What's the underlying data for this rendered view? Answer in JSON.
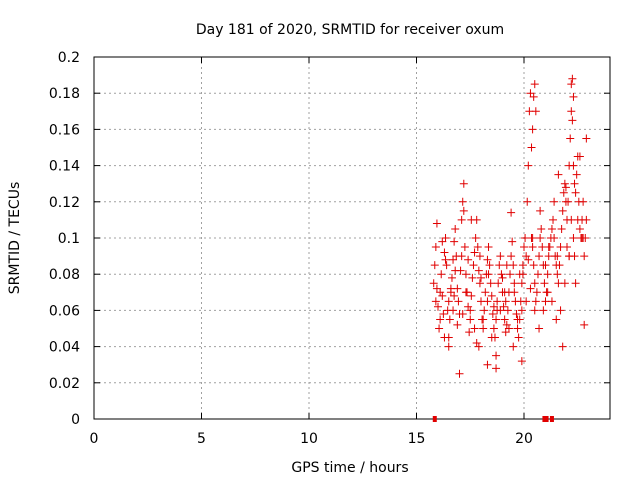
{
  "chart_data": {
    "type": "scatter",
    "title": "Day 181 of 2020, SRMTID for receiver oxum",
    "xlabel": "GPS time / hours",
    "ylabel": "SRMTID / TECUs",
    "xlim": [
      0,
      24
    ],
    "ylim": [
      0,
      0.2
    ],
    "xticks": [
      0,
      5,
      10,
      15,
      20
    ],
    "yticks": [
      0,
      0.02,
      0.04,
      0.06,
      0.08,
      0.1,
      0.12,
      0.14,
      0.16,
      0.18,
      0.2
    ],
    "grid": true,
    "marker": "plus",
    "color": "#e00000",
    "series": [
      {
        "x": [
          15.8,
          15.85,
          15.9,
          15.95,
          16.0,
          16.05,
          16.1,
          16.15,
          16.2,
          16.25,
          16.3,
          16.35,
          16.4,
          16.45,
          16.5,
          16.55,
          16.6,
          16.65,
          16.7,
          16.75,
          16.8,
          16.85,
          16.9,
          16.95,
          17.0,
          17.05,
          17.1,
          17.15,
          17.2,
          17.25,
          17.3,
          17.35,
          17.4,
          17.45,
          17.5,
          17.55,
          17.6,
          17.65,
          17.7,
          17.75,
          17.8,
          17.85,
          17.9,
          17.95,
          18.0,
          18.05,
          18.1,
          18.15,
          18.2,
          18.25,
          18.3,
          18.35,
          18.4,
          18.45,
          18.5,
          18.55,
          18.6,
          18.65,
          18.7,
          18.75,
          18.8,
          18.85,
          18.9,
          18.95,
          19.0,
          19.05,
          19.1,
          19.15,
          19.2,
          19.25,
          19.3,
          19.35,
          19.4,
          19.45,
          19.5,
          19.55,
          19.6,
          19.65,
          19.7,
          19.75,
          19.8,
          19.85,
          19.9,
          19.95,
          20.0,
          20.05,
          20.1,
          20.15,
          20.2,
          20.25,
          20.3,
          20.35,
          20.4,
          20.45,
          20.5,
          20.55,
          20.6,
          20.65,
          20.7,
          20.75,
          20.8,
          20.85,
          20.9,
          20.95,
          21.0,
          21.05,
          21.1,
          21.15,
          21.2,
          21.25,
          21.3,
          21.35,
          21.4,
          21.45,
          21.5,
          21.55,
          21.6,
          21.65,
          21.7,
          21.75,
          21.8,
          21.85,
          21.9,
          21.95,
          22.0,
          22.05,
          22.1,
          22.15,
          22.2,
          22.25,
          22.3,
          22.35,
          22.4,
          22.45,
          22.5,
          22.55,
          22.6,
          22.65,
          22.7,
          22.75,
          22.8,
          22.85,
          22.9,
          15.9,
          16.1,
          16.3,
          16.5,
          16.7,
          16.9,
          17.1,
          17.3,
          17.5,
          17.7,
          17.9,
          18.1,
          18.3,
          18.5,
          18.7,
          18.9,
          19.1,
          19.3,
          19.5,
          19.7,
          19.9,
          20.1,
          20.3,
          20.5,
          20.7,
          20.9,
          21.1,
          21.3,
          21.5,
          21.7,
          21.9,
          22.1,
          22.3,
          22.5,
          22.7,
          15.95,
          16.35,
          16.75,
          17.15,
          17.55,
          17.95,
          18.35,
          18.75,
          19.15,
          19.55,
          19.95,
          20.35,
          20.75,
          21.15,
          21.55,
          21.95,
          22.35,
          22.75,
          16.2,
          16.8,
          17.4,
          18.0,
          18.6,
          19.2,
          19.8,
          20.4,
          21.0,
          21.6,
          22.2,
          22.8,
          16.6,
          17.8,
          19.0,
          20.2,
          21.4,
          22.6,
          16.5,
          17.0,
          17.2,
          18.3,
          18.7,
          19.4,
          19.9,
          20.4,
          20.45,
          20.5,
          20.55,
          21.8,
          22.0,
          22.1,
          22.2,
          22.25,
          22.3,
          22.4,
          22.9
        ],
        "y": [
          0.075,
          0.085,
          0.095,
          0.108,
          0.062,
          0.05,
          0.07,
          0.08,
          0.068,
          0.058,
          0.092,
          0.1,
          0.085,
          0.06,
          0.045,
          0.055,
          0.07,
          0.078,
          0.088,
          0.098,
          0.105,
          0.09,
          0.072,
          0.065,
          0.058,
          0.082,
          0.09,
          0.12,
          0.13,
          0.095,
          0.08,
          0.07,
          0.062,
          0.048,
          0.055,
          0.068,
          0.078,
          0.085,
          0.092,
          0.1,
          0.11,
          0.095,
          0.082,
          0.075,
          0.065,
          0.055,
          0.05,
          0.06,
          0.07,
          0.08,
          0.088,
          0.095,
          0.085,
          0.075,
          0.068,
          0.058,
          0.05,
          0.045,
          0.055,
          0.065,
          0.075,
          0.085,
          0.09,
          0.08,
          0.07,
          0.062,
          0.055,
          0.048,
          0.052,
          0.06,
          0.07,
          0.08,
          0.09,
          0.098,
          0.085,
          0.075,
          0.065,
          0.058,
          0.05,
          0.045,
          0.055,
          0.065,
          0.075,
          0.085,
          0.095,
          0.1,
          0.09,
          0.12,
          0.14,
          0.17,
          0.18,
          0.15,
          0.1,
          0.085,
          0.075,
          0.065,
          0.07,
          0.08,
          0.09,
          0.1,
          0.105,
          0.095,
          0.085,
          0.075,
          0.065,
          0.07,
          0.08,
          0.09,
          0.095,
          0.1,
          0.105,
          0.11,
          0.1,
          0.09,
          0.085,
          0.08,
          0.075,
          0.085,
          0.095,
          0.105,
          0.115,
          0.125,
          0.13,
          0.12,
          0.11,
          0.12,
          0.14,
          0.155,
          0.185,
          0.165,
          0.14,
          0.13,
          0.125,
          0.135,
          0.145,
          0.12,
          0.105,
          0.1,
          0.11,
          0.12,
          0.09,
          0.1,
          0.11,
          0.065,
          0.055,
          0.045,
          0.065,
          0.06,
          0.052,
          0.11,
          0.07,
          0.06,
          0.05,
          0.04,
          0.055,
          0.065,
          0.045,
          0.035,
          0.06,
          0.07,
          0.05,
          0.04,
          0.055,
          0.06,
          0.065,
          0.072,
          0.06,
          0.05,
          0.06,
          0.07,
          0.065,
          0.055,
          0.06,
          0.075,
          0.09,
          0.1,
          0.11,
          0.1,
          0.072,
          0.088,
          0.068,
          0.058,
          0.11,
          0.09,
          0.08,
          0.06,
          0.065,
          0.07,
          0.08,
          0.1,
          0.115,
          0.095,
          0.09,
          0.128,
          0.09,
          0.1,
          0.098,
          0.082,
          0.088,
          0.078,
          0.062,
          0.085,
          0.08,
          0.095,
          0.085,
          0.135,
          0.11,
          0.052,
          0.072,
          0.042,
          0.078,
          0.088,
          0.12,
          0.145,
          0.04,
          0.025,
          0.115,
          0.03,
          0.028,
          0.114,
          0.032,
          0.16,
          0.178,
          0.185,
          0.17,
          0.04,
          0.095,
          0.09,
          0.17,
          0.188,
          0.178,
          0.075,
          0.155
        ]
      }
    ],
    "rug_x": [
      15.85,
      20.95,
      21.05,
      21.3
    ]
  }
}
